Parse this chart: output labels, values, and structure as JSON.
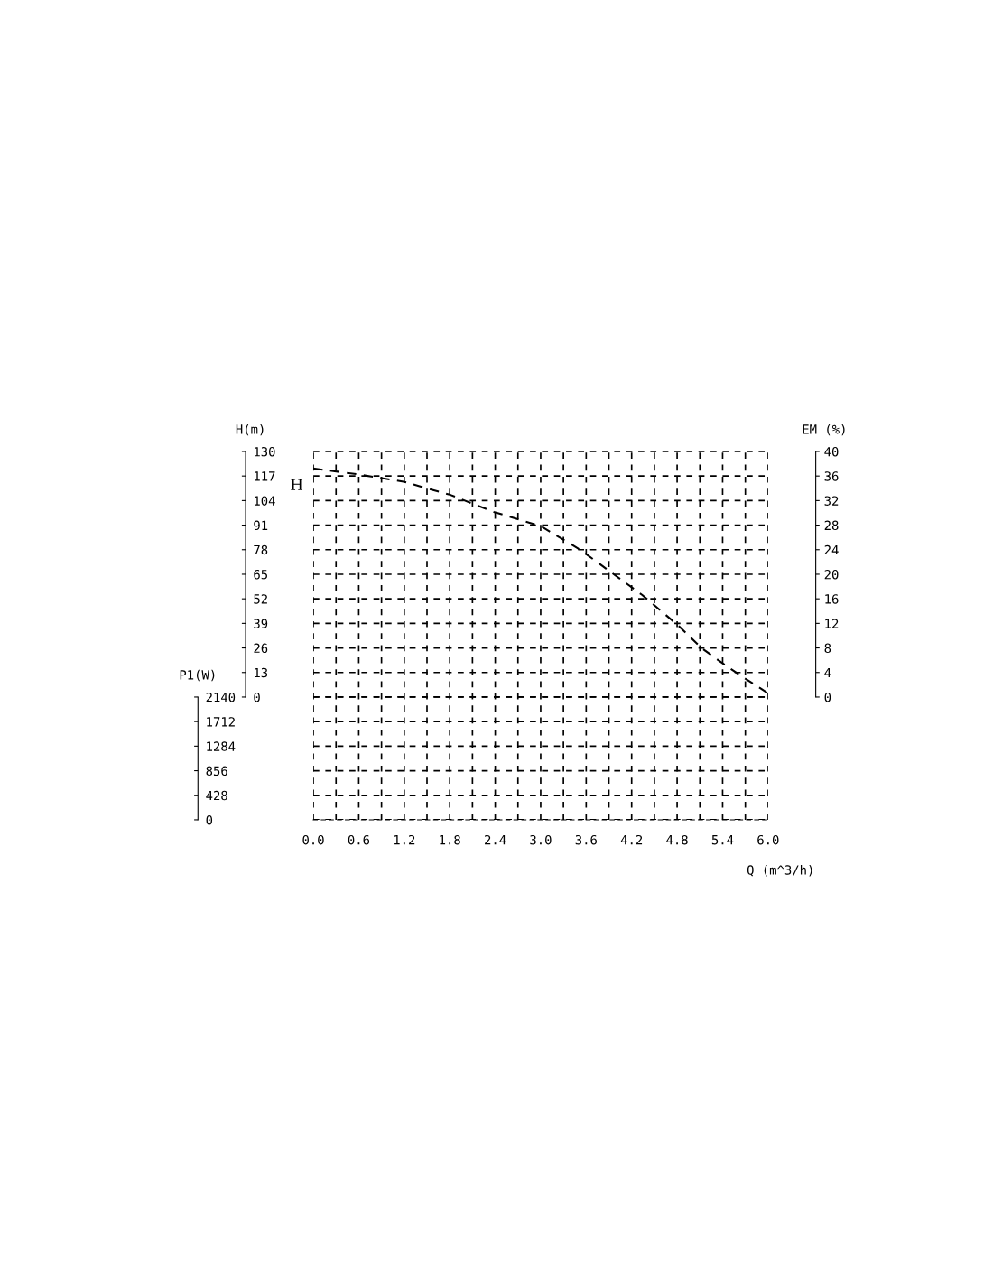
{
  "chart_data": {
    "type": "line",
    "ylabel": "H(m)",
    "y2label": "EM (%)",
    "y3label": "P1(W)",
    "xlabel": "Q (m^3/h)",
    "grid": true,
    "line_style": "dashed",
    "marker": "none",
    "xlim": [
      0,
      6.0
    ],
    "xticks": [
      {
        "value": 0,
        "label": "0.0"
      },
      {
        "value": 0.3,
        "label": null
      },
      {
        "value": 0.6,
        "label": "0.6"
      },
      {
        "value": 0.9,
        "label": null
      },
      {
        "value": 1.2,
        "label": "1.2"
      },
      {
        "value": 1.5,
        "label": null
      },
      {
        "value": 1.8,
        "label": "1.8"
      },
      {
        "value": 2.1,
        "label": null
      },
      {
        "value": 2.4,
        "label": "2.4"
      },
      {
        "value": 2.7,
        "label": null
      },
      {
        "value": 3.0,
        "label": "3.0"
      },
      {
        "value": 3.3,
        "label": null
      },
      {
        "value": 3.6,
        "label": "3.6"
      },
      {
        "value": 3.9,
        "label": null
      },
      {
        "value": 4.2,
        "label": "4.2"
      },
      {
        "value": 4.5,
        "label": null
      },
      {
        "value": 4.8,
        "label": "4.8"
      },
      {
        "value": 5.1,
        "label": null
      },
      {
        "value": 5.4,
        "label": "5.4"
      },
      {
        "value": 5.7,
        "label": null
      },
      {
        "value": 6.0,
        "label": "6.0"
      }
    ],
    "ylim": [
      -65,
      130
    ],
    "yticks": [
      0,
      13,
      26,
      39,
      52,
      65,
      78,
      91,
      104,
      117,
      130
    ],
    "y2lim": [
      -20,
      40
    ],
    "y2ticks": [
      0,
      4,
      8,
      12,
      16,
      20,
      24,
      28,
      32,
      36,
      40
    ],
    "y3lim": [
      0,
      6420
    ],
    "y3ticks": [
      0,
      428,
      856,
      1284,
      1712,
      2140
    ],
    "series": [
      {
        "name": "H",
        "color": "#000000",
        "x": [
          0,
          0.57,
          1.19,
          1.81,
          2.38,
          3.0,
          3.52,
          3.93,
          4.34,
          4.81,
          5.12,
          5.43,
          5.69,
          6.0
        ],
        "values": [
          121,
          118,
          114,
          107,
          98,
          90.5,
          78,
          66,
          54,
          38,
          26,
          17,
          10,
          2
        ]
      }
    ]
  }
}
